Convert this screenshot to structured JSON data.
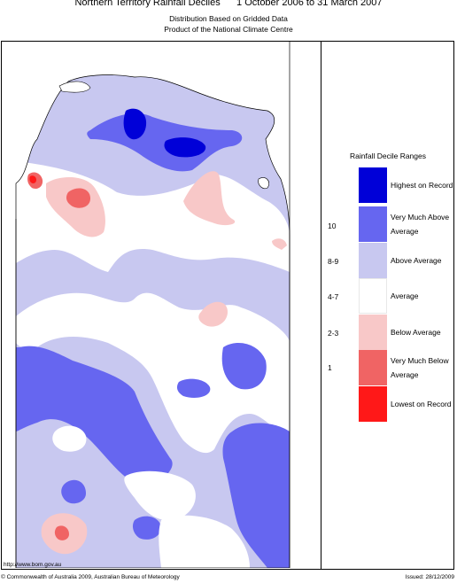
{
  "header": {
    "title": "Northern Territory Rainfall Deciles      1 October 2006 to 31 March 2007",
    "subtitle1": "Distribution Based on Gridded Data",
    "subtitle2": "Product of the National Climate Centre"
  },
  "legend": {
    "title": "Rainfall Decile Ranges",
    "items": [
      {
        "decile": "",
        "label": "Highest on Record",
        "color": "#0000d8"
      },
      {
        "decile": "10",
        "label": "Very Much Above Average",
        "color": "#6666f0"
      },
      {
        "decile": "8-9",
        "label": "Above Average",
        "color": "#c8c8f0"
      },
      {
        "decile": "4-7",
        "label": "Average",
        "color": "#ffffff"
      },
      {
        "decile": "2-3",
        "label": "Below Average",
        "color": "#f8c8c8"
      },
      {
        "decile": "1",
        "label": "Very Much Below Average",
        "color": "#f06464"
      },
      {
        "decile": "",
        "label": "Lowest on Record",
        "color": "#ff1818"
      }
    ]
  },
  "footer": {
    "url": "http://www.bom.gov.au",
    "copyright": "© Commonwealth of Australia 2009, Australian Bureau of Meteorology",
    "issued": "Issued: 28/12/2009"
  }
}
